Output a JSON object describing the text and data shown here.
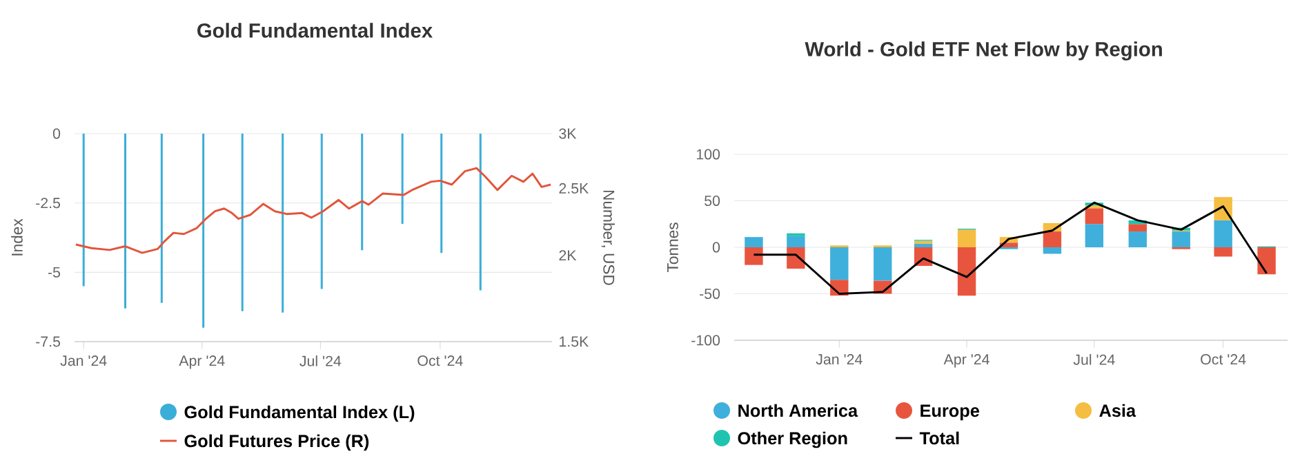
{
  "chart_data": [
    {
      "type": "bar",
      "title": "Gold Fundamental Index",
      "ylabel": "Index",
      "y2label": "Number, USD",
      "x": [
        "2024-01-01",
        "2024-02-02",
        "2024-03-01",
        "2024-04-02",
        "2024-05-02",
        "2024-06-02",
        "2024-07-02",
        "2024-08-02",
        "2024-09-02",
        "2024-10-02",
        "2024-11-01"
      ],
      "xlim": [
        "2023-12-25",
        "2024-12-26"
      ],
      "xticks": [
        {
          "value": "2024-01-01",
          "label": "Jan '24"
        },
        {
          "value": "2024-04-01",
          "label": "Apr '24"
        },
        {
          "value": "2024-07-01",
          "label": "Jul '24"
        },
        {
          "value": "2024-10-01",
          "label": "Oct '24"
        }
      ],
      "ylim": [
        -7.5,
        0
      ],
      "yticks": [
        -7.5,
        -5,
        -2.5,
        0
      ],
      "y2lim": [
        1500,
        3000
      ],
      "y2ticks": [
        {
          "value": 1500,
          "label": "1.5K"
        },
        {
          "value": 2000,
          "label": "2K"
        },
        {
          "value": 2500,
          "label": "2.5K"
        },
        {
          "value": 3000,
          "label": "3K"
        }
      ],
      "log": "y2",
      "grid": "y",
      "legend": "bottom",
      "series": [
        {
          "name": "Gold Fundamental Index (L)",
          "color": "#3aaed8",
          "values": [
            -5.5,
            -6.3,
            -6.1,
            -7.0,
            -6.4,
            -6.45,
            -5.6,
            -4.2,
            -3.25,
            -4.3,
            -5.65
          ]
        },
        {
          "name": "Gold Futures Price (R)",
          "type": "line",
          "axis": "y2",
          "color": "#e2553b",
          "x": [
            "2023-12-26",
            "2024-01-07",
            "2024-01-21",
            "2024-02-02",
            "2024-02-15",
            "2024-02-27",
            "2024-03-03",
            "2024-03-10",
            "2024-03-18",
            "2024-03-28",
            "2024-04-04",
            "2024-04-11",
            "2024-04-18",
            "2024-04-24",
            "2024-04-29",
            "2024-05-08",
            "2024-05-18",
            "2024-05-27",
            "2024-06-05",
            "2024-06-17",
            "2024-06-24",
            "2024-07-03",
            "2024-07-15",
            "2024-07-23",
            "2024-08-02",
            "2024-08-07",
            "2024-08-18",
            "2024-09-03",
            "2024-09-10",
            "2024-09-24",
            "2024-10-01",
            "2024-10-10",
            "2024-10-20",
            "2024-10-29",
            "2024-11-05",
            "2024-11-14",
            "2024-11-25",
            "2024-12-04",
            "2024-12-11",
            "2024-12-18",
            "2024-12-25"
          ],
          "values": [
            2073,
            2048,
            2036,
            2061,
            2016,
            2043,
            2094,
            2155,
            2147,
            2190,
            2259,
            2316,
            2337,
            2302,
            2259,
            2288,
            2373,
            2316,
            2295,
            2302,
            2267,
            2316,
            2405,
            2337,
            2396,
            2367,
            2457,
            2445,
            2489,
            2555,
            2564,
            2531,
            2646,
            2674,
            2596,
            2486,
            2606,
            2555,
            2625,
            2512,
            2531
          ]
        }
      ]
    },
    {
      "type": "bar",
      "title": "World - Gold ETF Net Flow by Region",
      "ylabel": "Tonnes",
      "stacked": true,
      "x": [
        "2023-11",
        "2023-12",
        "2024-01",
        "2024-02",
        "2024-03",
        "2024-04",
        "2024-05",
        "2024-06",
        "2024-07",
        "2024-08",
        "2024-09",
        "2024-10",
        "2024-11"
      ],
      "xlim": [
        "2023-10-18",
        "2024-11-16"
      ],
      "xticks": [
        {
          "value": "2024-01-01",
          "label": "Jan '24"
        },
        {
          "value": "2024-04-01",
          "label": "Apr '24"
        },
        {
          "value": "2024-07-01",
          "label": "Jul '24"
        },
        {
          "value": "2024-10-01",
          "label": "Oct '24"
        }
      ],
      "ylim": [
        -100,
        100
      ],
      "yticks": [
        -100,
        -50,
        0,
        50,
        100
      ],
      "grid": "y",
      "legend": "bottom",
      "series": [
        {
          "name": "North America",
          "color": "#3fb0dc",
          "values": [
            11,
            12,
            -35,
            -36,
            4,
            0,
            -2,
            -7,
            25,
            17,
            17,
            29,
            0
          ]
        },
        {
          "name": "Europe",
          "color": "#e8553f",
          "values": [
            -19,
            -23,
            -17,
            -14,
            -20,
            -52,
            5,
            17,
            17,
            8,
            -2,
            -10,
            -29
          ]
        },
        {
          "name": "Asia",
          "color": "#f5bd41",
          "values": [
            0,
            0,
            2,
            2,
            3,
            19,
            6,
            9,
            3,
            0,
            1,
            25,
            0
          ]
        },
        {
          "name": "Other Region",
          "color": "#1fc4b0",
          "values": [
            0,
            3,
            0,
            0,
            1,
            1,
            0,
            0,
            3,
            4,
            3,
            0,
            1
          ]
        },
        {
          "name": "Total",
          "type": "line",
          "color": "#000000",
          "values": [
            -8,
            -8,
            -50,
            -48,
            -12,
            -32,
            9,
            18,
            48,
            29,
            19,
            44,
            -28
          ]
        }
      ]
    }
  ]
}
